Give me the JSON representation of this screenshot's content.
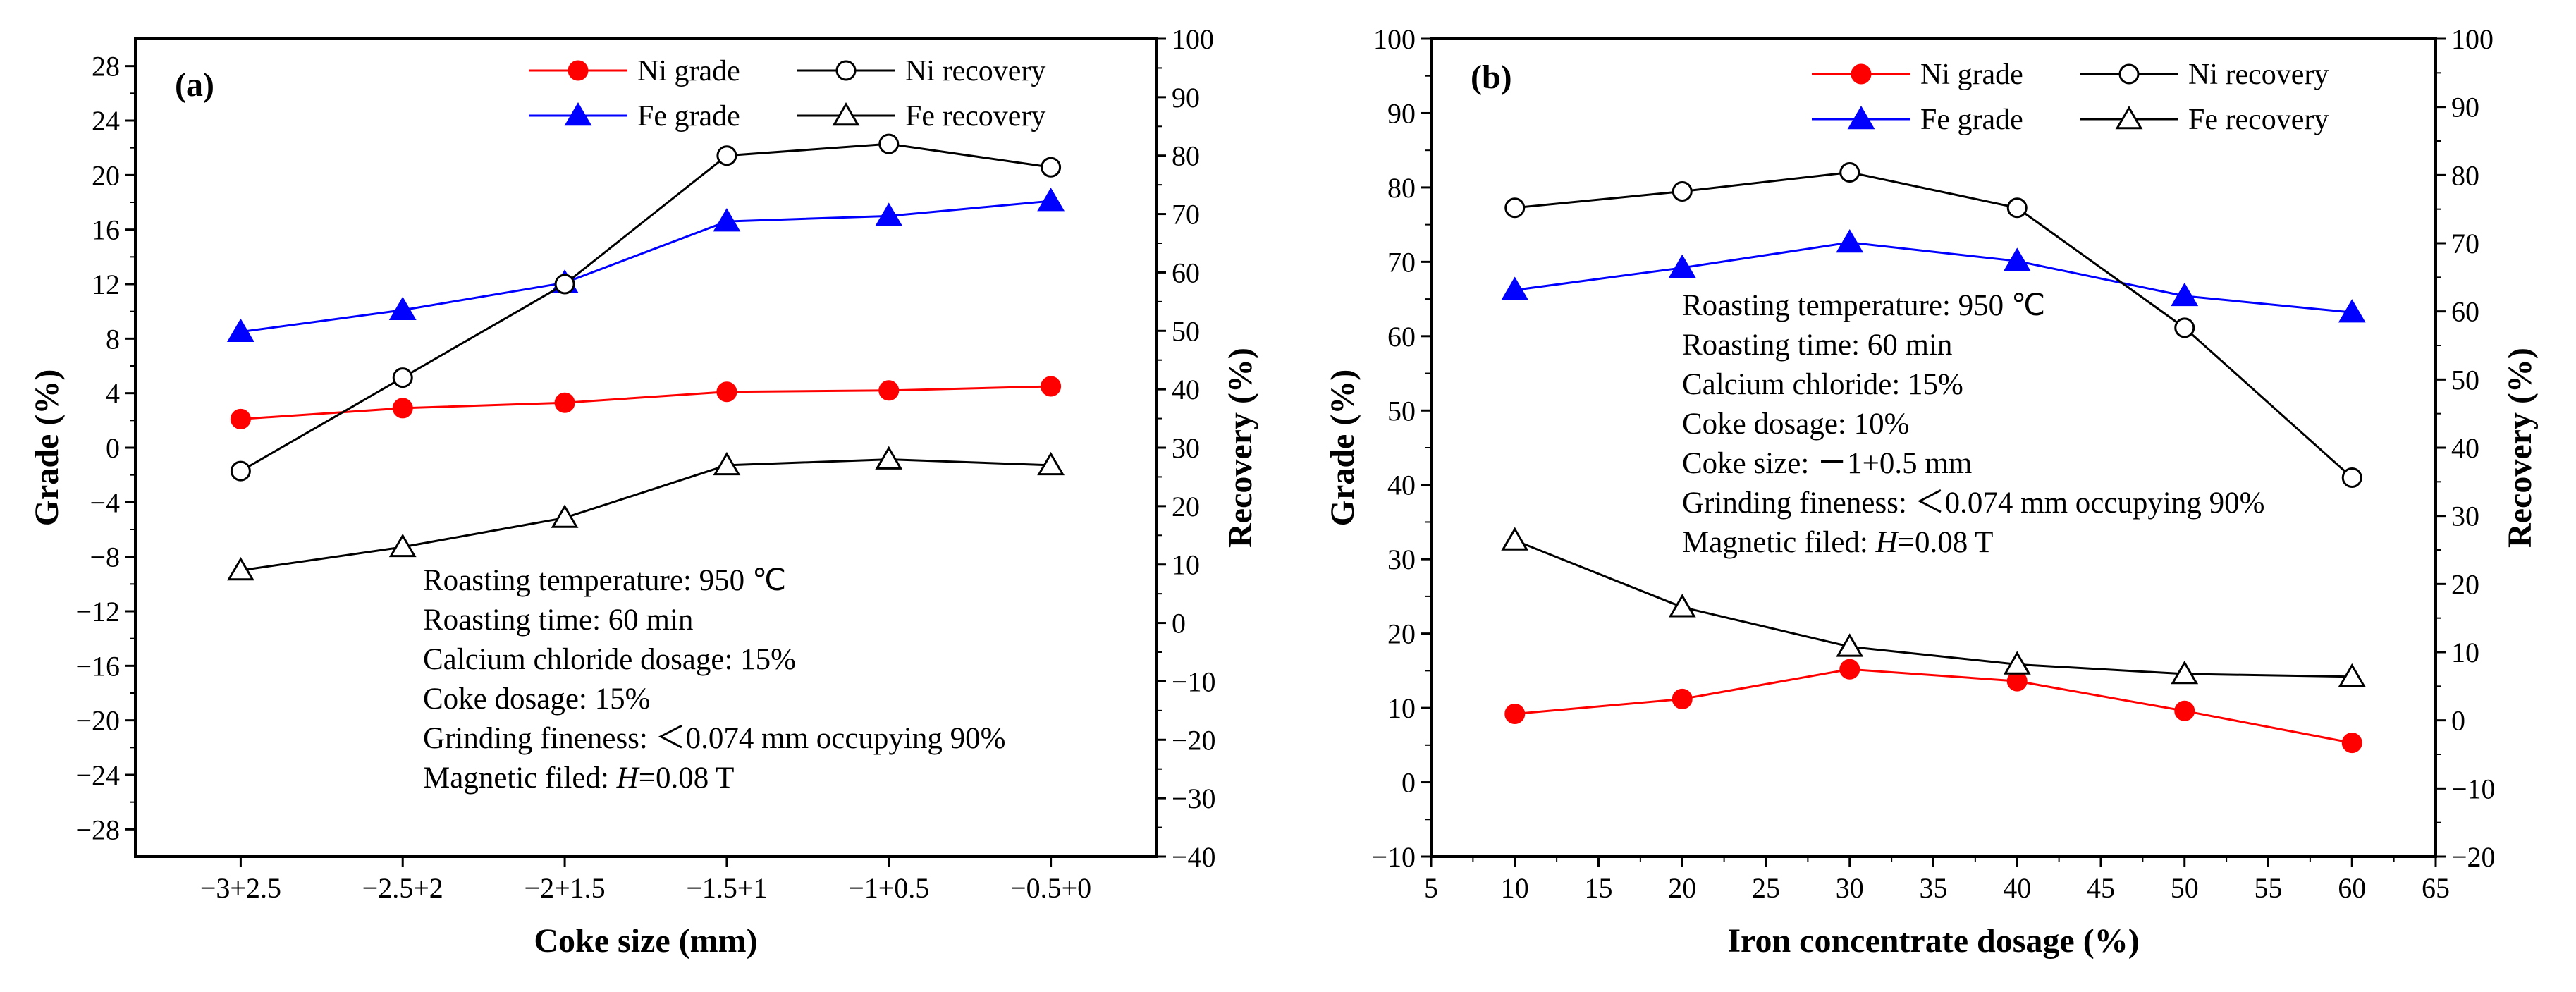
{
  "chart_data": [
    {
      "type": "line",
      "panel": "(a)",
      "categories": [
        "−3+2.5",
        "−2.5+2",
        "−2+1.5",
        "−1.5+1",
        "−1+0.5",
        "−0.5+0"
      ],
      "xlabel": "Coke size (mm)",
      "ylabel_left": "Grade (%)",
      "ylabel_right": "Recovery (%)",
      "ylim_left": [
        -30,
        30
      ],
      "yticks_left": [
        -28,
        -24,
        -20,
        -16,
        -12,
        -8,
        -4,
        0,
        4,
        8,
        12,
        16,
        20,
        24,
        28
      ],
      "ylim_right": [
        -40,
        100
      ],
      "yticks_right": [
        -40,
        -30,
        -20,
        -10,
        0,
        10,
        20,
        30,
        40,
        50,
        60,
        70,
        80,
        90,
        100
      ],
      "series": [
        {
          "name": "Ni grade",
          "axis": "left",
          "color": "#ff0000",
          "marker": "circle-filled",
          "values": [
            2.1,
            2.9,
            3.3,
            4.1,
            4.2,
            4.5
          ]
        },
        {
          "name": "Fe grade",
          "axis": "left",
          "color": "#0000ff",
          "marker": "triangle-filled",
          "values": [
            8.5,
            10.1,
            12.1,
            16.6,
            17.0,
            18.1
          ]
        },
        {
          "name": "Ni recovery",
          "axis": "right",
          "color": "#000000",
          "marker": "circle-open",
          "values": [
            26,
            42,
            58,
            80,
            82,
            78
          ]
        },
        {
          "name": "Fe recovery",
          "axis": "right",
          "color": "#000000",
          "marker": "triangle-open",
          "values": [
            9,
            13,
            18,
            27,
            28,
            27
          ]
        }
      ],
      "annotations": [
        "Roasting temperature: 950 ℃",
        "Roasting time: 60 min",
        "Calcium chloride dosage: 15%",
        "Coke dosage: 15%",
        "Grinding fineness: ＜0.074 mm occupying 90%",
        "Magnetic filed: H=0.08 T"
      ]
    },
    {
      "type": "line",
      "panel": "(b)",
      "x": [
        10,
        20,
        30,
        40,
        50,
        60
      ],
      "xlabel": "Iron concentrate dosage (%)",
      "ylabel_left": "Grade (%)",
      "ylabel_right": "Recovery (%)",
      "xlim": [
        5,
        65
      ],
      "xticks": [
        5,
        10,
        15,
        20,
        25,
        30,
        35,
        40,
        45,
        50,
        55,
        60,
        65
      ],
      "ylim_left": [
        -10,
        100
      ],
      "yticks_left": [
        -10,
        0,
        10,
        20,
        30,
        40,
        50,
        60,
        70,
        80,
        90,
        100
      ],
      "ylim_right": [
        -20,
        100
      ],
      "yticks_right": [
        -20,
        -10,
        0,
        10,
        20,
        30,
        40,
        50,
        60,
        70,
        80,
        90,
        100
      ],
      "series": [
        {
          "name": "Ni grade",
          "axis": "left",
          "color": "#ff0000",
          "marker": "circle-filled",
          "values": [
            9.2,
            11.2,
            15.2,
            13.6,
            9.6,
            5.3
          ]
        },
        {
          "name": "Fe grade",
          "axis": "left",
          "color": "#0000ff",
          "marker": "triangle-filled",
          "values": [
            66.2,
            69.2,
            72.6,
            70.1,
            65.4,
            63.2
          ]
        },
        {
          "name": "Ni recovery",
          "axis": "right",
          "color": "#000000",
          "marker": "circle-open",
          "values": [
            75.2,
            77.6,
            80.4,
            75.2,
            57.6,
            35.6
          ]
        },
        {
          "name": "Fe recovery",
          "axis": "right",
          "color": "#000000",
          "marker": "triangle-open",
          "values": [
            26.4,
            16.6,
            10.8,
            8.2,
            6.8,
            6.4
          ]
        }
      ],
      "annotations": [
        "Roasting temperature: 950 ℃",
        "Roasting time: 60 min",
        "Calcium chloride: 15%",
        "Coke dosage: 10%",
        "Coke size: －1+0.5 mm",
        "Grinding fineness: ＜0.074 mm occupying 90%",
        "Magnetic filed: H=0.08 T"
      ]
    }
  ]
}
